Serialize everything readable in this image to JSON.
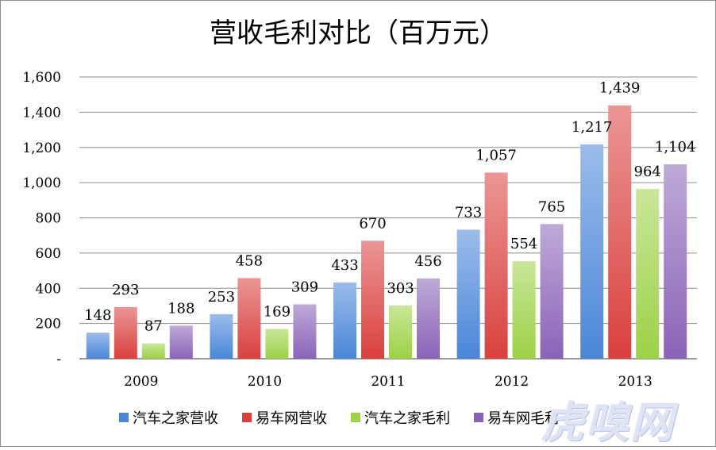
{
  "chart_data": {
    "type": "bar",
    "title": "营收毛利对比（百万元）",
    "categories": [
      "2009",
      "2010",
      "2011",
      "2012",
      "2013"
    ],
    "series": [
      {
        "name": "汽车之家营收",
        "values": [
          148,
          253,
          433,
          733,
          1217
        ],
        "labels": [
          "148",
          "253",
          "433",
          "733",
          "1,217"
        ],
        "color": "#4a86d8"
      },
      {
        "name": "易车网营收",
        "values": [
          293,
          458,
          670,
          1057,
          1439
        ],
        "labels": [
          "293",
          "458",
          "670",
          "1,057",
          "1,439"
        ],
        "color": "#d9403e"
      },
      {
        "name": "汽车之家毛利",
        "values": [
          87,
          169,
          303,
          554,
          964
        ],
        "labels": [
          "87",
          "169",
          "303",
          "554",
          "964"
        ],
        "color": "#9cd146"
      },
      {
        "name": "易车网毛利",
        "values": [
          188,
          309,
          456,
          765,
          1104
        ],
        "labels": [
          "188",
          "309",
          "456",
          "765",
          "1,104"
        ],
        "color": "#8a63b8"
      }
    ],
    "ylim": [
      0,
      1600
    ],
    "yticks": [
      0,
      200,
      400,
      600,
      800,
      1000,
      1200,
      1400,
      1600
    ],
    "ytick_labels": [
      "-",
      "200",
      "400",
      "600",
      "800",
      "1,000",
      "1,200",
      "1,400",
      "1,600"
    ],
    "xlabel": "",
    "ylabel": "",
    "grid": true,
    "legend_position": "bottom"
  },
  "watermark": "虎嗅网"
}
